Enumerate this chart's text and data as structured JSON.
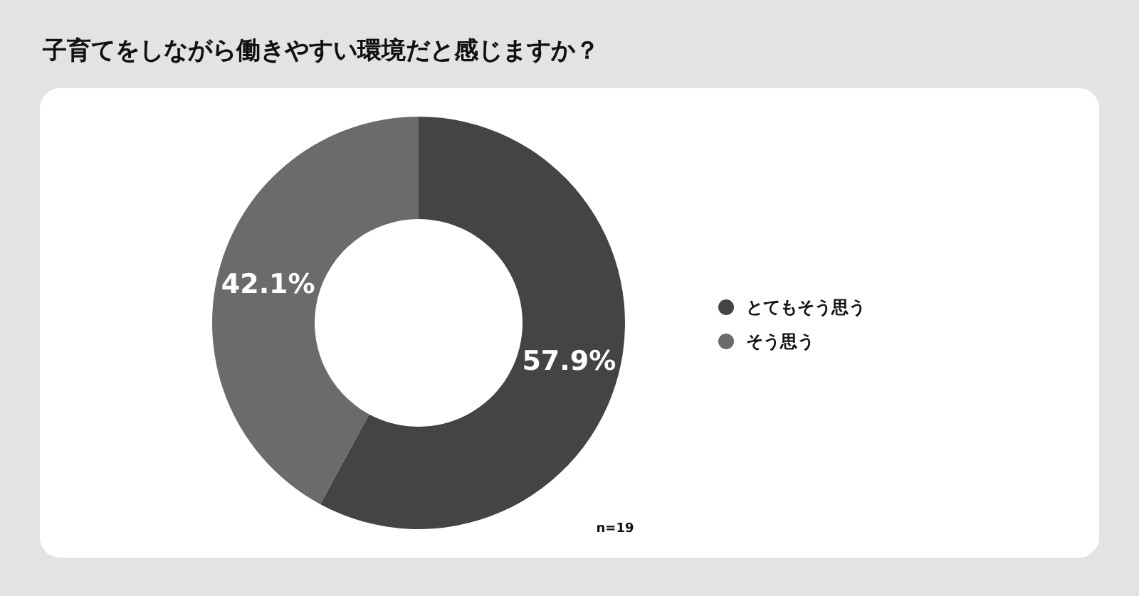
{
  "chart_data": {
    "type": "donut",
    "title": "子育てをしながら働きやすい環境だと感じますか？",
    "categories": [
      "とてもそう思う",
      "そう思う"
    ],
    "values": [
      57.9,
      42.1
    ],
    "colors": [
      "#444444",
      "#6b6b6b"
    ],
    "value_labels": [
      "57.9%",
      "42.1%"
    ],
    "legend": "right",
    "annotations": [
      "n=19"
    ]
  }
}
